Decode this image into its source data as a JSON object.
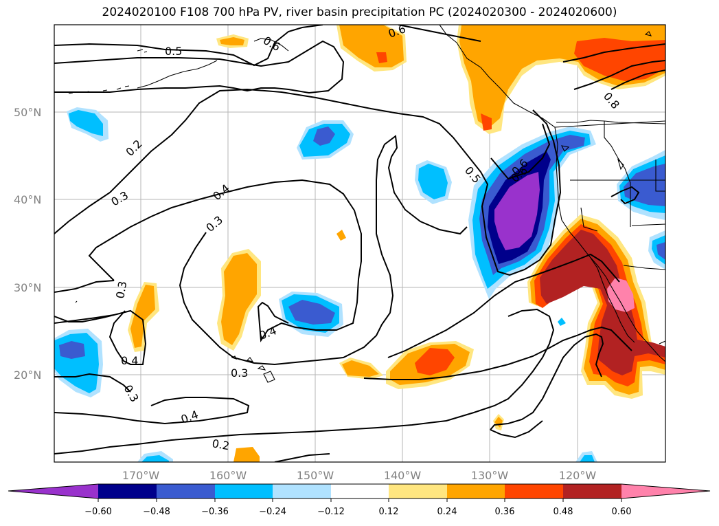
{
  "title": "2024020100 F108 700 hPa PV, river basin precipitation PC (2024020300 - 2024020600)",
  "map": {
    "lat_labels": [
      "50°N",
      "40°N",
      "30°N",
      "20°N"
    ],
    "lon_labels": [
      "170°W",
      "160°W",
      "150°W",
      "140°W",
      "130°W",
      "120°W"
    ],
    "pv_contour_labels": [
      "0.5",
      "0.6",
      "0.6",
      "0.6",
      "0.2",
      "0.3",
      "0.4",
      "0.3",
      "0.5",
      "0.6",
      "0.3",
      "0.4",
      "0.4",
      "0.3",
      "0.3",
      "0.4",
      "0.2",
      "0.8"
    ],
    "colors": {
      "neg_060": "#9932cc",
      "neg_048": "#00008b",
      "neg_036": "#3a5bd0",
      "neg_024": "#00bfff",
      "neg_012": "#b0e2ff",
      "pos_012": "#ffe680",
      "pos_024": "#ffa500",
      "pos_036": "#ff4500",
      "pos_048": "#b22222",
      "pos_060": "#ff82ab"
    }
  },
  "colorbar": {
    "ticks": [
      "−0.60",
      "−0.48",
      "−0.36",
      "−0.24",
      "−0.12",
      "0.12",
      "0.24",
      "0.36",
      "0.48",
      "0.60"
    ]
  }
}
